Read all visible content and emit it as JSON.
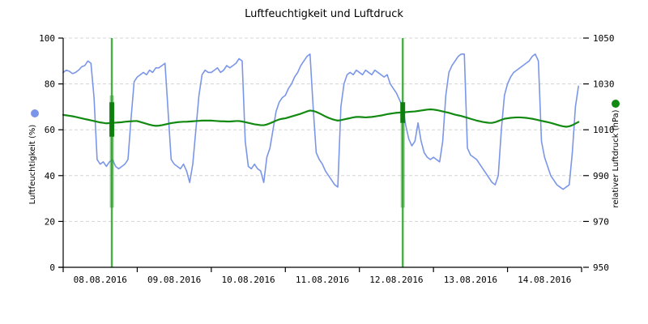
{
  "title": "Luftfeuchtigkeit und Luftdruck",
  "colors": {
    "humidity": "#7b96e8",
    "pressure": "#128a12",
    "spike_halo": "#2fa02c",
    "spike_core": "#0b7d0b",
    "grid": "#d4d4d4",
    "axis": "#000000",
    "background": "#ffffff"
  },
  "chart_data": {
    "type": "line",
    "title": "Luftfeuchtigkeit und Luftdruck",
    "grid": "horizontal-dashed",
    "legend": "colored dot beside each rotated axis label",
    "x_axis": {
      "tick_labels": [
        "08.08.2016",
        "09.08.2016",
        "10.08.2016",
        "11.08.2016",
        "12.08.2016",
        "13.08.2016",
        "14.08.2016"
      ],
      "range_days": [
        0,
        7
      ],
      "note": "ticks at day boundaries, labels centered within each day"
    },
    "left_axis": {
      "label": "Luftfeuchtigkeit (%)",
      "ticks": [
        0,
        20,
        40,
        60,
        80,
        100
      ],
      "range": [
        0,
        100
      ],
      "color": "#7b96e8"
    },
    "right_axis": {
      "label": "relativer Luftdruck (hPa)",
      "ticks": [
        950,
        970,
        990,
        1010,
        1030,
        1050
      ],
      "range": [
        950,
        1050
      ],
      "color": "#128a12"
    },
    "series": [
      {
        "name": "Luftfeuchtigkeit",
        "axis": "left",
        "unit": "%",
        "color": "#7b96e8",
        "stroke_width": 1.6,
        "sample_interval_hours": 1,
        "start": "08.08.2016 00:00",
        "values": [
          85,
          86,
          85.5,
          84.5,
          85,
          86,
          87.5,
          88,
          90,
          89,
          74,
          47,
          45,
          46,
          44,
          46,
          47,
          44,
          43,
          44,
          45,
          47,
          65,
          81,
          83,
          84,
          85,
          84,
          86,
          85,
          87,
          87,
          88,
          89,
          68,
          47,
          45,
          44,
          43,
          45,
          42,
          37,
          45,
          60,
          75,
          84,
          86,
          85,
          85,
          86,
          87,
          85,
          86,
          88,
          87,
          88,
          89,
          91,
          90,
          55,
          44,
          43,
          45,
          43,
          42,
          37,
          48,
          52,
          60,
          68,
          72,
          74,
          75,
          78,
          80,
          83,
          85,
          88,
          90,
          92,
          93,
          70,
          50,
          47,
          45,
          42,
          40,
          38,
          36,
          35,
          70,
          80,
          84,
          85,
          84,
          86,
          85,
          84,
          86,
          85,
          84,
          86,
          85,
          84,
          83,
          84,
          80,
          78,
          76,
          73,
          70,
          62,
          56,
          53,
          55,
          63,
          55,
          50,
          48,
          47,
          48,
          47,
          46,
          55,
          75,
          85,
          88,
          90,
          92,
          93,
          93,
          52,
          49,
          48,
          47,
          45,
          43,
          41,
          39,
          37,
          36,
          40,
          60,
          75,
          80,
          83,
          85,
          86,
          87,
          88,
          89,
          90,
          92,
          93,
          90,
          55,
          48,
          44,
          40,
          38,
          36,
          35,
          34,
          35,
          36,
          50,
          70,
          79
        ]
      },
      {
        "name": "relativer Luftdruck",
        "axis": "right",
        "unit": "hPa",
        "color": "#128a12",
        "stroke_width": 2.2,
        "sample_interval_hours": 1,
        "start": "08.08.2016 00:00",
        "values": [
          1016.5,
          1016.3,
          1016.1,
          1015.9,
          1015.6,
          1015.3,
          1015.0,
          1014.7,
          1014.4,
          1014.1,
          1013.8,
          1013.5,
          1013.2,
          1013.0,
          1012.8,
          1012.9,
          1013.0,
          1013.1,
          1013.2,
          1013.3,
          1013.5,
          1013.6,
          1013.7,
          1013.8,
          1013.8,
          1013.4,
          1013.0,
          1012.6,
          1012.2,
          1011.9,
          1011.7,
          1011.8,
          1012.0,
          1012.3,
          1012.6,
          1012.9,
          1013.1,
          1013.3,
          1013.4,
          1013.5,
          1013.5,
          1013.6,
          1013.7,
          1013.8,
          1013.9,
          1014.0,
          1014.0,
          1014.0,
          1014.0,
          1013.9,
          1013.8,
          1013.7,
          1013.7,
          1013.6,
          1013.6,
          1013.7,
          1013.8,
          1013.8,
          1013.6,
          1013.3,
          1013.0,
          1012.7,
          1012.4,
          1012.2,
          1012.0,
          1012.0,
          1012.3,
          1012.8,
          1013.4,
          1014.0,
          1014.5,
          1014.8,
          1015.0,
          1015.4,
          1015.8,
          1016.2,
          1016.6,
          1017.0,
          1017.5,
          1018.0,
          1018.4,
          1018.2,
          1017.8,
          1017.2,
          1016.5,
          1015.8,
          1015.2,
          1014.7,
          1014.3,
          1014.0,
          1014.2,
          1014.5,
          1014.8,
          1015.1,
          1015.4,
          1015.6,
          1015.6,
          1015.5,
          1015.4,
          1015.5,
          1015.6,
          1015.8,
          1016.0,
          1016.2,
          1016.5,
          1016.8,
          1017.0,
          1017.2,
          1017.4,
          1017.5,
          1017.6,
          1017.7,
          1017.8,
          1017.9,
          1018.0,
          1018.2,
          1018.4,
          1018.6,
          1018.8,
          1018.9,
          1018.8,
          1018.6,
          1018.3,
          1018.0,
          1017.7,
          1017.4,
          1017.0,
          1016.6,
          1016.3,
          1016.0,
          1015.6,
          1015.2,
          1014.8,
          1014.4,
          1014.0,
          1013.7,
          1013.4,
          1013.2,
          1013.0,
          1013.0,
          1013.3,
          1013.8,
          1014.3,
          1014.8,
          1015.0,
          1015.2,
          1015.3,
          1015.4,
          1015.4,
          1015.3,
          1015.2,
          1015.0,
          1014.8,
          1014.5,
          1014.2,
          1013.9,
          1013.6,
          1013.3,
          1013.0,
          1012.6,
          1012.2,
          1011.8,
          1011.5,
          1011.3,
          1011.5,
          1012.0,
          1012.7,
          1013.4
        ]
      }
    ],
    "anomaly_spikes": [
      {
        "series": "relativer Luftdruck",
        "t_days": 0.657,
        "full_range_hpa": [
          950,
          1050
        ],
        "band_range_hpa": [
          976,
          1025
        ],
        "core_range_hpa": [
          1007,
          1022
        ]
      },
      {
        "series": "relativer Luftdruck",
        "t_days": 4.585,
        "full_range_hpa": [
          950,
          1050
        ],
        "band_range_hpa": [
          976,
          1022
        ],
        "core_range_hpa": [
          1013,
          1022
        ]
      }
    ]
  }
}
